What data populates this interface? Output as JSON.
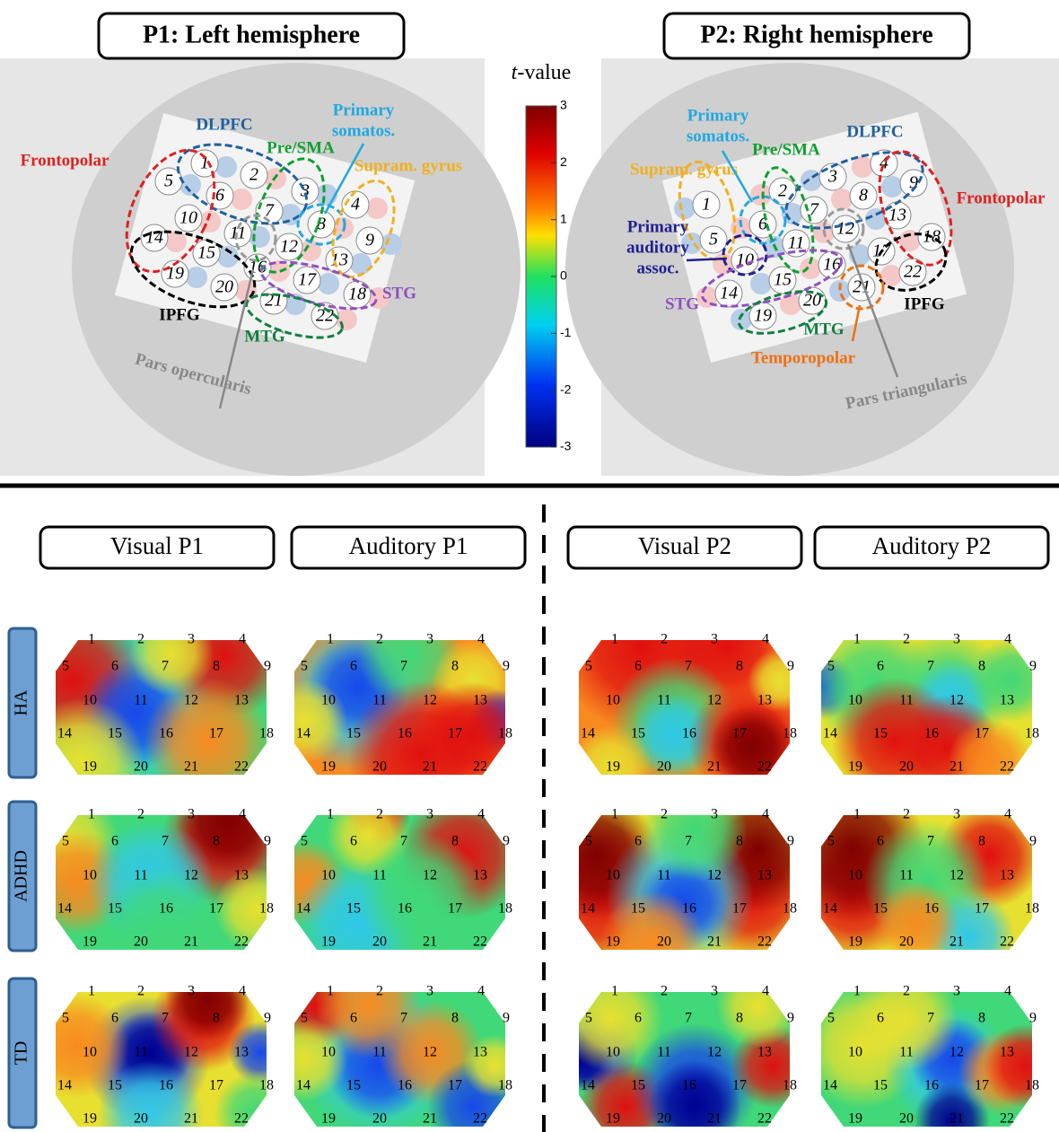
{
  "panels": [
    {
      "title": "P1: Left hemisphere",
      "regions": [
        [
          "DLPFC"
        ],
        [
          "Primary",
          "somatos."
        ],
        [
          "Pre/SMA"
        ],
        [
          "Supram. gyrus"
        ],
        [
          "Frontopolar"
        ],
        [
          "IPFG"
        ],
        [
          "STG"
        ],
        [
          "MTG"
        ],
        [
          "Pars opercularis"
        ]
      ]
    },
    {
      "title": "P2: Right hemisphere",
      "regions": [
        [
          "Primary",
          "somatos."
        ],
        [
          "Pre/SMA"
        ],
        [
          "DLPFC"
        ],
        [
          "Supram. gyrus"
        ],
        [
          "Frontopolar"
        ],
        [
          "Primary",
          "auditory",
          "assoc."
        ],
        [
          "STG"
        ],
        [
          "MTG"
        ],
        [
          "IPFG"
        ],
        [
          "Temporopolar"
        ],
        [
          "Pars triangularis"
        ]
      ]
    }
  ],
  "colorbar": {
    "label_italic": "t",
    "label": "-value",
    "ticks": [
      3,
      2,
      1,
      0,
      -1,
      -2,
      -3
    ]
  },
  "columns": [
    "Visual P1",
    "Auditory P1",
    "Visual P2",
    "Auditory P2"
  ],
  "rows": [
    "HA",
    "ADHD",
    "TD"
  ],
  "channels": [
    1,
    2,
    3,
    4,
    5,
    6,
    7,
    8,
    9,
    10,
    11,
    12,
    13,
    14,
    15,
    16,
    17,
    18,
    19,
    20,
    21,
    22
  ]
}
